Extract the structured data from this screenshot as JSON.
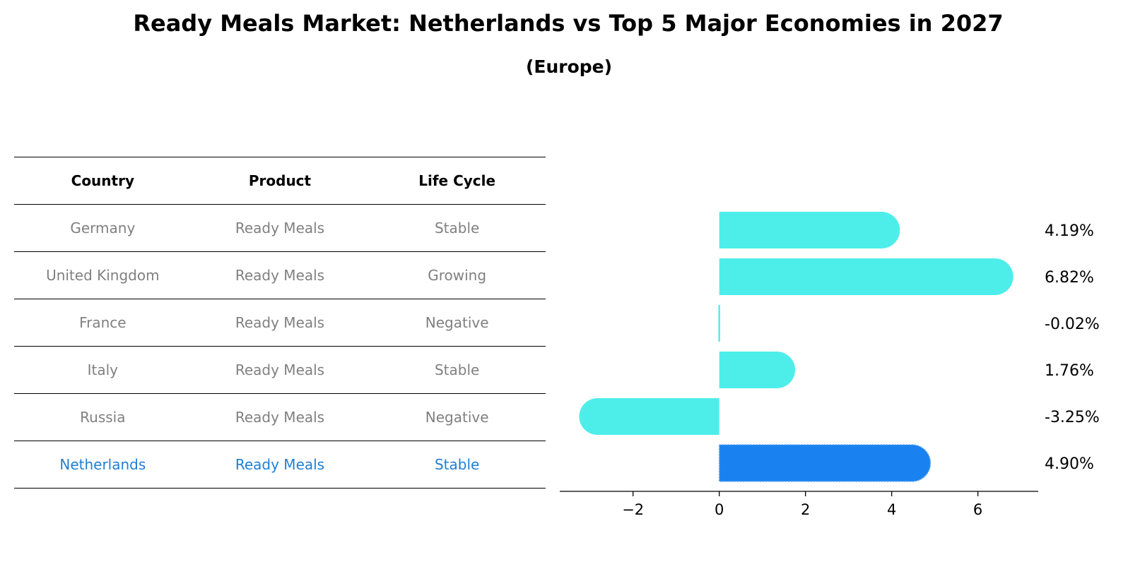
{
  "header": {
    "title": "Ready Meals Market: Netherlands vs Top 5 Major Economies in 2027",
    "subtitle": "(Europe)"
  },
  "table": {
    "columns": [
      "Country",
      "Product",
      "Life Cycle"
    ],
    "rows": [
      {
        "country": "Germany",
        "product": "Ready Meals",
        "life_cycle": "Stable"
      },
      {
        "country": "United Kingdom",
        "product": "Ready Meals",
        "life_cycle": "Growing"
      },
      {
        "country": "France",
        "product": "Ready Meals",
        "life_cycle": "Negative"
      },
      {
        "country": "Italy",
        "product": "Ready Meals",
        "life_cycle": "Stable"
      },
      {
        "country": "Russia",
        "product": "Ready Meals",
        "life_cycle": "Negative"
      },
      {
        "country": "Netherlands",
        "product": "Ready Meals",
        "life_cycle": "Stable"
      }
    ],
    "highlight_row": "Netherlands"
  },
  "colors": {
    "bar": "#4deeea",
    "highlight_bar": "#1a82f0",
    "highlight_text": "#1f7fd4",
    "muted_text": "#808080"
  },
  "chart_data": {
    "type": "bar",
    "orientation": "horizontal",
    "categories": [
      "Germany",
      "United Kingdom",
      "France",
      "Italy",
      "Russia",
      "Netherlands"
    ],
    "values": [
      4.19,
      6.82,
      -0.02,
      1.76,
      -3.25,
      4.9
    ],
    "value_labels": [
      "4.19%",
      "6.82%",
      "-0.02%",
      "1.76%",
      "-3.25%",
      "4.90%"
    ],
    "xticks": [
      -2,
      0,
      2,
      4,
      6
    ],
    "xtick_labels": [
      "−2",
      "0",
      "2",
      "4",
      "6"
    ],
    "xlim": [
      -3.7,
      7.4
    ],
    "highlight": "Netherlands",
    "grid": false,
    "legend": false
  }
}
